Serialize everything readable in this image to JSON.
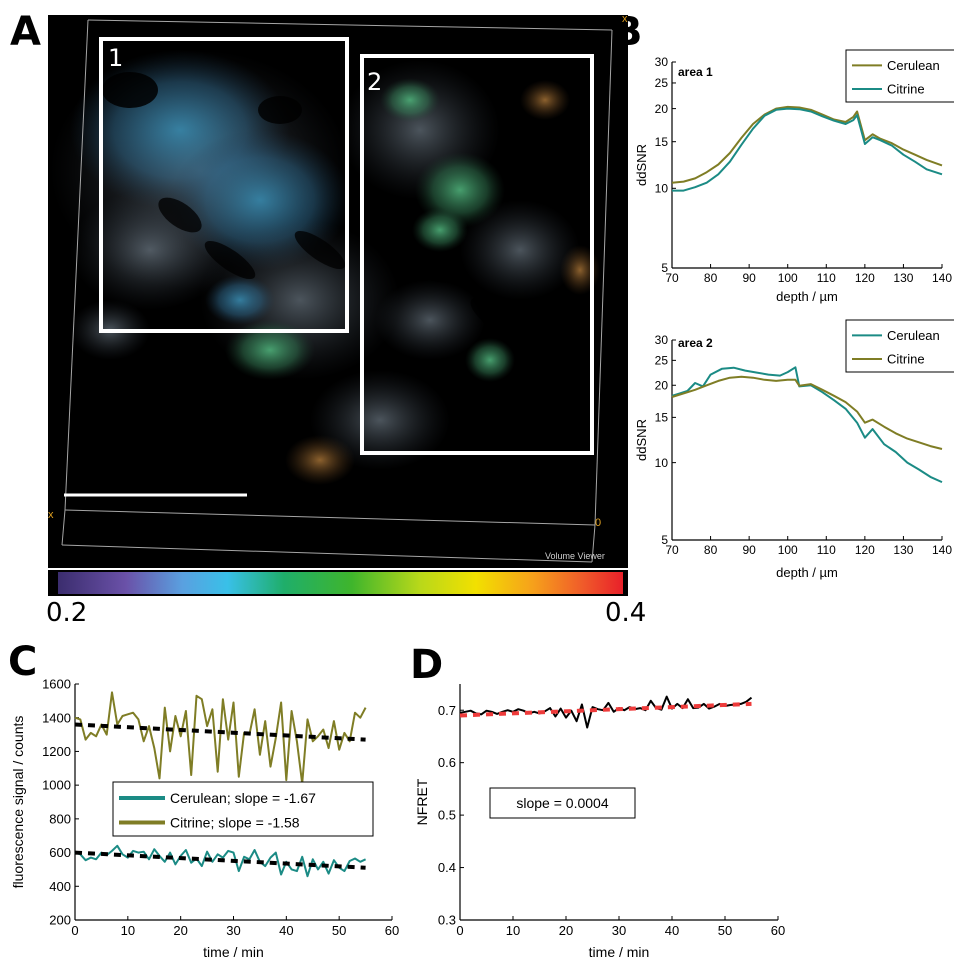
{
  "panels": {
    "a": "A",
    "b": "B",
    "c": "C",
    "d": "D"
  },
  "micrograph": {
    "roi_labels": [
      "1",
      "2"
    ],
    "watermark": "Volume Viewer",
    "colorbar": {
      "min": "0.2",
      "max": "0.4"
    }
  },
  "colors": {
    "cerulean": "#1b8b85",
    "citrine": "#7f7d25",
    "trend_black": "#000000",
    "trend_red": "#ee3b3b"
  },
  "chart_data": [
    {
      "id": "B1",
      "type": "line",
      "title": "area 1",
      "xlabel": "depth / µm",
      "ylabel": "ddSNR",
      "xlim": [
        70,
        140
      ],
      "ylim": [
        5,
        30
      ],
      "yscale": "log",
      "xticks": [
        70,
        80,
        90,
        100,
        110,
        120,
        130,
        140
      ],
      "yticks": [
        5,
        10,
        15,
        20,
        25,
        30
      ],
      "legend": "top-right",
      "series": [
        {
          "name": "Cerulean",
          "color": "#7f7d25",
          "x": [
            70,
            73,
            76,
            79,
            82,
            85,
            88,
            91,
            94,
            97,
            100,
            103,
            106,
            109,
            112,
            115,
            117,
            118,
            120,
            122,
            124,
            127,
            130,
            133,
            136,
            140
          ],
          "y": [
            10.5,
            10.6,
            10.9,
            11.5,
            12.3,
            13.6,
            15.5,
            17.5,
            19.0,
            20.0,
            20.3,
            20.2,
            19.8,
            19.0,
            18.2,
            17.8,
            18.6,
            19.5,
            15.2,
            16.0,
            15.4,
            14.8,
            14.0,
            13.4,
            12.8,
            12.2
          ]
        },
        {
          "name": "Citrine",
          "color": "#1b8b85",
          "x": [
            70,
            73,
            76,
            79,
            82,
            85,
            88,
            91,
            94,
            97,
            100,
            103,
            106,
            109,
            112,
            115,
            117,
            118,
            120,
            122,
            124,
            127,
            130,
            133,
            136,
            140
          ],
          "y": [
            9.8,
            9.8,
            10.1,
            10.5,
            11.3,
            12.6,
            14.6,
            16.8,
            18.8,
            19.8,
            20.0,
            19.9,
            19.5,
            18.7,
            18.0,
            17.5,
            18.1,
            18.9,
            14.7,
            15.6,
            15.2,
            14.5,
            13.4,
            12.6,
            11.8,
            11.3
          ]
        }
      ]
    },
    {
      "id": "B2",
      "type": "line",
      "title": "area 2",
      "xlabel": "depth / µm",
      "ylabel": "ddSNR",
      "xlim": [
        70,
        140
      ],
      "ylim": [
        5,
        30
      ],
      "yscale": "log",
      "xticks": [
        70,
        80,
        90,
        100,
        110,
        120,
        130,
        140
      ],
      "yticks": [
        5,
        10,
        15,
        20,
        25,
        30
      ],
      "legend": "top-right",
      "series": [
        {
          "name": "Cerulean",
          "color": "#1b8b85",
          "x": [
            70,
            72,
            74,
            76,
            78,
            80,
            83,
            86,
            89,
            92,
            95,
            98,
            100,
            102,
            103,
            106,
            109,
            112,
            115,
            118,
            120,
            122,
            125,
            128,
            131,
            134,
            137,
            140
          ],
          "y": [
            18.2,
            18.6,
            19.0,
            20.4,
            19.8,
            22.0,
            23.2,
            23.4,
            22.8,
            22.4,
            22.0,
            21.8,
            22.5,
            23.5,
            19.8,
            20.0,
            18.8,
            17.5,
            16.2,
            14.3,
            12.5,
            13.5,
            11.8,
            11.0,
            10.0,
            9.4,
            8.8,
            8.4
          ]
        },
        {
          "name": "Citrine",
          "color": "#7f7d25",
          "x": [
            70,
            73,
            76,
            79,
            82,
            85,
            88,
            91,
            94,
            97,
            100,
            102,
            103,
            106,
            109,
            112,
            115,
            118,
            120,
            122,
            125,
            128,
            131,
            134,
            137,
            140
          ],
          "y": [
            18.0,
            18.6,
            19.2,
            20.0,
            20.8,
            21.4,
            21.6,
            21.4,
            21.0,
            20.8,
            21.0,
            21.0,
            19.9,
            20.2,
            19.2,
            18.2,
            17.2,
            15.8,
            14.3,
            14.7,
            13.8,
            13.0,
            12.4,
            12.0,
            11.6,
            11.3
          ]
        }
      ]
    },
    {
      "id": "C",
      "type": "line",
      "xlabel": "time / min",
      "ylabel": "fluorescence signal / counts",
      "xlim": [
        0,
        60
      ],
      "ylim": [
        200,
        1600
      ],
      "xticks": [
        0,
        10,
        20,
        30,
        40,
        50,
        60
      ],
      "yticks": [
        200,
        400,
        600,
        800,
        1000,
        1200,
        1400,
        1600
      ],
      "legend": "center",
      "series": [
        {
          "name": "Cerulean; slope = -1.67",
          "color": "#1b8b85",
          "x": [
            0,
            1,
            2,
            3,
            4,
            5,
            6,
            7,
            8,
            9,
            10,
            11,
            12,
            13,
            14,
            15,
            16,
            17,
            18,
            19,
            20,
            21,
            22,
            23,
            24,
            25,
            26,
            27,
            28,
            29,
            30,
            31,
            32,
            33,
            34,
            35,
            36,
            37,
            38,
            39,
            40,
            41,
            42,
            43,
            44,
            45,
            46,
            47,
            48,
            49,
            50,
            51,
            52,
            53,
            54,
            55
          ],
          "y": [
            600,
            590,
            555,
            570,
            560,
            600,
            585,
            610,
            640,
            590,
            570,
            610,
            600,
            605,
            560,
            620,
            580,
            545,
            600,
            530,
            580,
            615,
            540,
            565,
            520,
            605,
            545,
            590,
            570,
            610,
            600,
            490,
            575,
            560,
            615,
            545,
            520,
            570,
            600,
            470,
            545,
            500,
            490,
            575,
            460,
            560,
            500,
            545,
            475,
            555,
            510,
            490,
            550,
            565,
            545,
            560
          ]
        },
        {
          "name": "Citrine; slope = -1.58",
          "color": "#7f7d25",
          "x": [
            0,
            1,
            2,
            3,
            4,
            5,
            6,
            7,
            8,
            9,
            10,
            11,
            12,
            13,
            14,
            15,
            16,
            17,
            18,
            19,
            20,
            21,
            22,
            23,
            24,
            25,
            26,
            27,
            28,
            29,
            30,
            31,
            32,
            33,
            34,
            35,
            36,
            37,
            38,
            39,
            40,
            41,
            42,
            43,
            44,
            45,
            46,
            47,
            48,
            49,
            50,
            51,
            52,
            53,
            54,
            55
          ],
          "y": [
            1400,
            1390,
            1270,
            1310,
            1290,
            1360,
            1300,
            1550,
            1360,
            1410,
            1420,
            1430,
            1390,
            1260,
            1350,
            1220,
            1040,
            1460,
            1200,
            1410,
            1290,
            1440,
            1060,
            1530,
            1510,
            1350,
            1450,
            1080,
            1510,
            1270,
            1490,
            1050,
            1310,
            1300,
            1450,
            1180,
            1380,
            1110,
            1280,
            1490,
            1030,
            1440,
            1260,
            1010,
            1390,
            1260,
            1290,
            1330,
            1220,
            1380,
            1210,
            1310,
            1260,
            1430,
            1400,
            1460
          ]
        }
      ],
      "trendlines": [
        {
          "color": "#000000",
          "x": [
            0,
            55
          ],
          "y": [
            1360,
            1270
          ]
        },
        {
          "color": "#000000",
          "x": [
            0,
            55
          ],
          "y": [
            600,
            510
          ]
        }
      ]
    },
    {
      "id": "D",
      "type": "line",
      "xlabel": "time / min",
      "ylabel": "NFRET",
      "xlim": [
        0,
        60
      ],
      "ylim": [
        0.3,
        0.75
      ],
      "xticks": [
        0,
        10,
        20,
        30,
        40,
        50,
        60
      ],
      "yticks": [
        0.3,
        0.4,
        0.5,
        0.6,
        0.7
      ],
      "annotation": "slope = 0.0004",
      "series": [
        {
          "name": "",
          "color": "#000000",
          "x": [
            0,
            1,
            2,
            3,
            4,
            5,
            6,
            7,
            8,
            9,
            10,
            11,
            12,
            13,
            14,
            15,
            16,
            17,
            18,
            19,
            20,
            21,
            22,
            23,
            24,
            25,
            26,
            27,
            28,
            29,
            30,
            31,
            32,
            33,
            34,
            35,
            36,
            37,
            38,
            39,
            40,
            41,
            42,
            43,
            44,
            45,
            46,
            47,
            48,
            49,
            50,
            51,
            52,
            53,
            54,
            55
          ],
          "y": [
            0.695,
            0.697,
            0.699,
            0.694,
            0.692,
            0.699,
            0.697,
            0.693,
            0.697,
            0.7,
            0.697,
            0.702,
            0.699,
            0.694,
            0.697,
            0.694,
            0.698,
            0.704,
            0.688,
            0.703,
            0.686,
            0.699,
            0.679,
            0.711,
            0.667,
            0.706,
            0.702,
            0.7,
            0.714,
            0.697,
            0.704,
            0.7,
            0.706,
            0.702,
            0.704,
            0.7,
            0.718,
            0.704,
            0.701,
            0.726,
            0.703,
            0.712,
            0.704,
            0.721,
            0.704,
            0.705,
            0.712,
            0.703,
            0.707,
            0.712,
            0.708,
            0.71,
            0.711,
            0.712,
            0.716,
            0.724
          ]
        }
      ],
      "trendlines": [
        {
          "color": "#ee3b3b",
          "x": [
            0,
            55
          ],
          "y": [
            0.69,
            0.712
          ]
        }
      ]
    }
  ]
}
